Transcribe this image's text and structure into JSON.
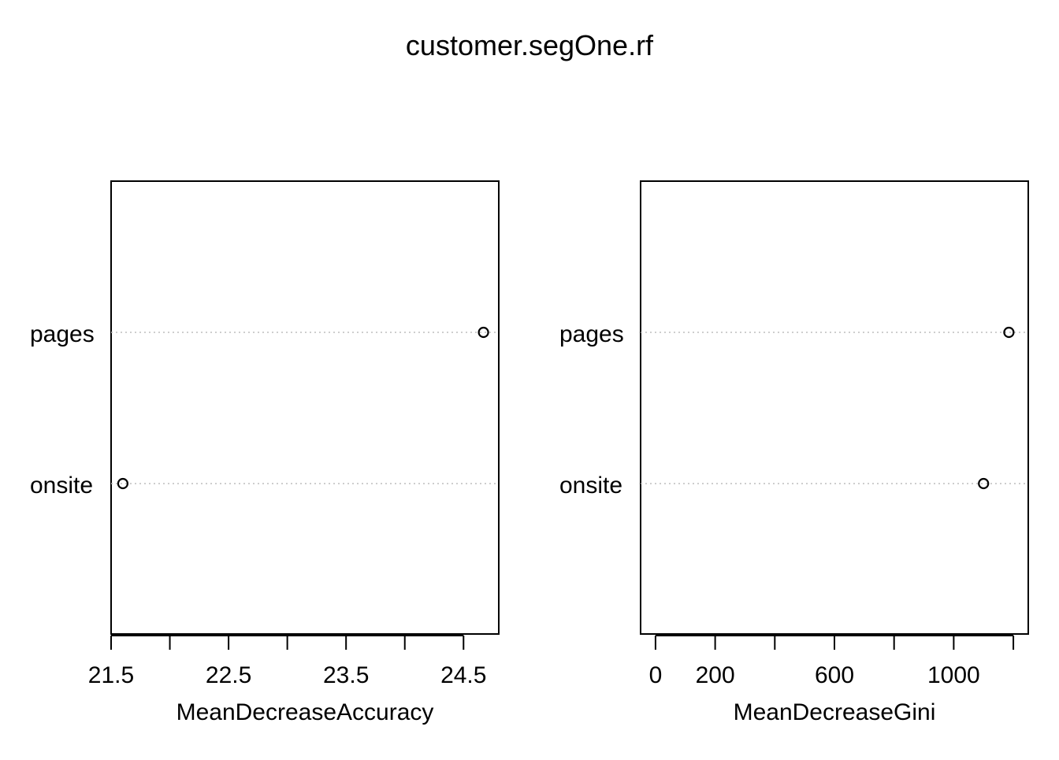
{
  "chart_data": {
    "type": "scatter",
    "subtype": "dotchart",
    "title": "customer.segOne.rf",
    "categories": [
      "pages",
      "onsite"
    ],
    "panels": [
      {
        "xlabel": "MeanDecreaseAccuracy",
        "xlim": [
          21.5,
          24.8
        ],
        "major_ticks": [
          21.5,
          22.0,
          22.5,
          23.0,
          23.5,
          24.0,
          24.5
        ],
        "tick_labels": [
          {
            "value": 21.5,
            "label": "21.5"
          },
          {
            "value": 22.5,
            "label": "22.5"
          },
          {
            "value": 23.5,
            "label": "23.5"
          },
          {
            "value": 24.5,
            "label": "24.5"
          }
        ],
        "values": [
          {
            "category": "pages",
            "value": 24.67
          },
          {
            "category": "onsite",
            "value": 21.6
          }
        ]
      },
      {
        "xlabel": "MeanDecreaseGini",
        "xlim": [
          -50,
          1250
        ],
        "major_ticks": [
          0,
          200,
          400,
          600,
          800,
          1000,
          1200
        ],
        "tick_labels": [
          {
            "value": 0,
            "label": "0"
          },
          {
            "value": 200,
            "label": "200"
          },
          {
            "value": 600,
            "label": "600"
          },
          {
            "value": 1000,
            "label": "1000"
          }
        ],
        "values": [
          {
            "category": "pages",
            "value": 1185
          },
          {
            "category": "onsite",
            "value": 1100
          }
        ]
      }
    ],
    "grid": "dotted horizontal guide per category",
    "legend": "none",
    "colors": {
      "point_stroke": "#000000",
      "guide": "#bebebe",
      "frame": "#000000"
    }
  }
}
